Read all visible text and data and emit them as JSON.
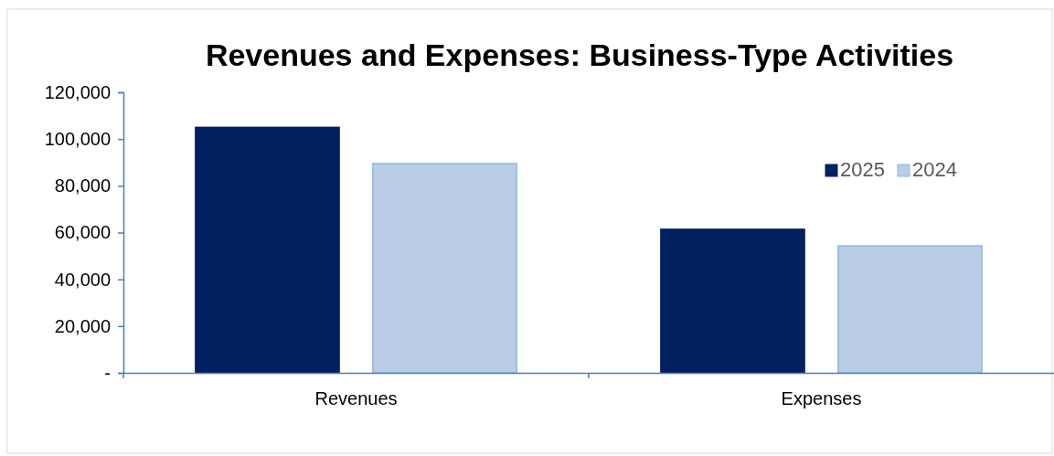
{
  "chart_data": {
    "type": "bar",
    "title": "Revenues and Expenses: Business-Type Activities",
    "categories": [
      "Revenues",
      "Expenses"
    ],
    "series": [
      {
        "name": "2025",
        "color": "#002060",
        "values": [
          105000,
          61400
        ]
      },
      {
        "name": "2024",
        "color": "#b9cde5",
        "values": [
          89500,
          54300
        ]
      }
    ],
    "ylim": [
      0,
      120000
    ],
    "yticks": [
      {
        "value": 0,
        "label": "-"
      },
      {
        "value": 20000,
        "label": "20,000"
      },
      {
        "value": 40000,
        "label": "40,000"
      },
      {
        "value": 60000,
        "label": "60,000"
      },
      {
        "value": 80000,
        "label": "80,000"
      },
      {
        "value": 100000,
        "label": "100,000"
      },
      {
        "value": 120000,
        "label": "120,000"
      }
    ],
    "grid": false,
    "legend": "top right"
  }
}
